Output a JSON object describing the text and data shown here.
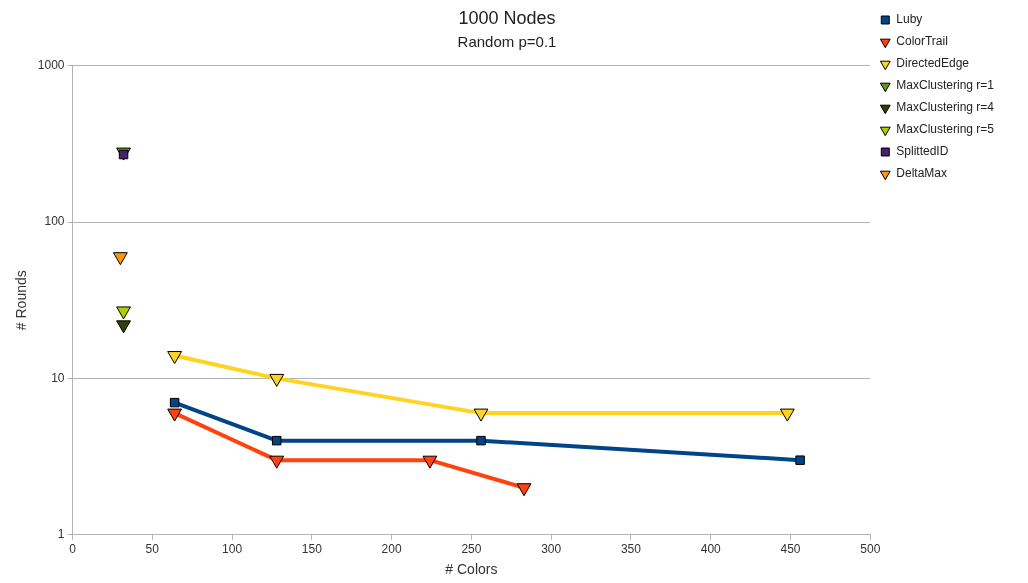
{
  "chart_data": {
    "type": "line",
    "title": "1000 Nodes",
    "subtitle": "Random p=0.1",
    "xlabel": "# Colors",
    "ylabel": "# Rounds",
    "xlim": [
      0,
      500
    ],
    "xticks": [
      0,
      50,
      100,
      150,
      200,
      250,
      300,
      350,
      400,
      450,
      500
    ],
    "ylim": [
      1,
      1000
    ],
    "yticks": [
      1,
      10,
      100,
      1000
    ],
    "log": "y",
    "grid": "y",
    "legend": "top right",
    "series": [
      {
        "name": "Luby",
        "color": "#004586",
        "marker": "square",
        "x": [
          64,
          128,
          256,
          456
        ],
        "values": [
          7,
          4,
          4,
          3
        ]
      },
      {
        "name": "ColorTrail",
        "color": "#ff420e",
        "marker": "triangle",
        "x": [
          64,
          128,
          224,
          283
        ],
        "values": [
          6,
          3,
          3,
          2
        ]
      },
      {
        "name": "DirectedEdge",
        "color": "#ffd320",
        "marker": "triangle",
        "x": [
          64,
          128,
          256,
          448
        ],
        "values": [
          14,
          10,
          6,
          6
        ]
      },
      {
        "name": "MaxClustering r=1",
        "color": "#579d1c",
        "marker": "triangle",
        "x": [
          32
        ],
        "values": [
          280
        ]
      },
      {
        "name": "MaxClustering r=4",
        "color": "#314004",
        "marker": "triangle",
        "x": [
          32
        ],
        "values": [
          22
        ]
      },
      {
        "name": "MaxClustering r=5",
        "color": "#aecf00",
        "marker": "triangle",
        "x": [
          32
        ],
        "values": [
          27
        ]
      },
      {
        "name": "SplittedID",
        "color": "#4b1f6f",
        "marker": "square",
        "x": [
          32
        ],
        "values": [
          270
        ]
      },
      {
        "name": "DeltaMax",
        "color": "#ff950e",
        "marker": "triangle",
        "x": [
          30
        ],
        "values": [
          60
        ]
      }
    ]
  }
}
